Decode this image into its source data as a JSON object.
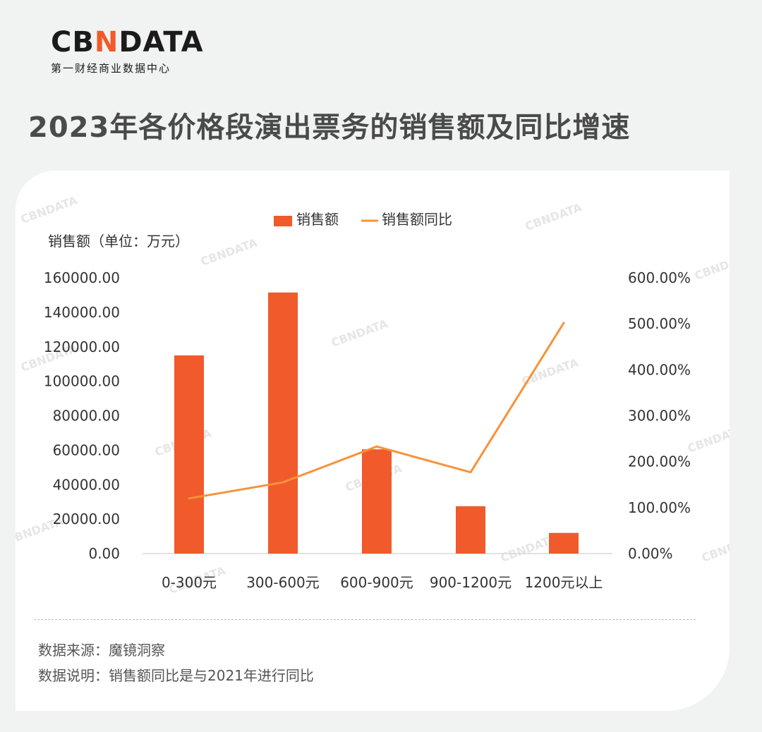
{
  "logo": {
    "wordmark_left": "CB",
    "wordmark_mid": "N",
    "wordmark_right": "DATA",
    "subtitle": "第一财经商业数据中心"
  },
  "title": "2023年各价格段演出票务的销售额及同比增速",
  "colors": {
    "bar": "#f15a2b",
    "line": "#f7923a",
    "title": "#4a4a4a",
    "brand": "#f15a29"
  },
  "chart_data": {
    "type": "bar",
    "categories": [
      "0-300元",
      "300-600元",
      "600-900元",
      "900-1200元",
      "1200元以上"
    ],
    "series": [
      {
        "name": "销售额",
        "type": "bar",
        "axis": "left",
        "values": [
          115000,
          151500,
          60500,
          27500,
          12000
        ]
      },
      {
        "name": "销售额同比",
        "type": "line",
        "axis": "right",
        "values": [
          120,
          155,
          233,
          177,
          502
        ]
      }
    ],
    "ylabel": "销售额（单位：万元）",
    "ylim": [
      0,
      160000
    ],
    "yticks": [
      "0.00",
      "20000.00",
      "40000.00",
      "60000.00",
      "80000.00",
      "100000.00",
      "120000.00",
      "140000.00",
      "160000.00"
    ],
    "y2lim": [
      0,
      600
    ],
    "y2ticks": [
      "0.00%",
      "100.00%",
      "200.00%",
      "300.00%",
      "400.00%",
      "500.00%",
      "600.00%"
    ],
    "legend_position": "top-center",
    "grid": false
  },
  "watermark": "CBNDATA",
  "notes": {
    "source": "数据来源：魔镜洞察",
    "explanation": "数据说明：销售额同比是与2021年进行同比"
  }
}
